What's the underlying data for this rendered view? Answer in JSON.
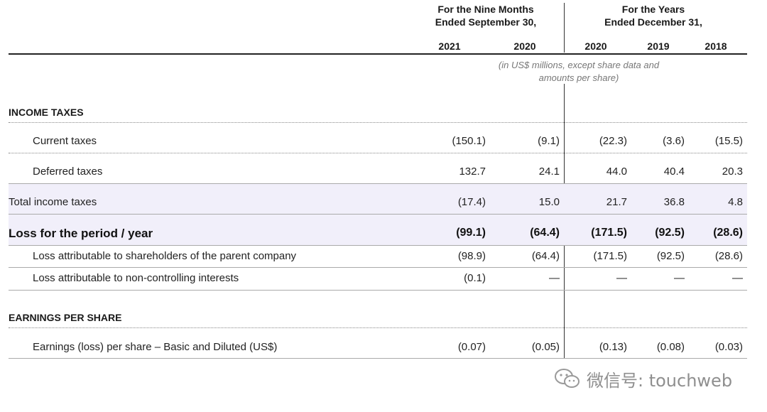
{
  "header": {
    "nine_months_line1": "For the Nine Months",
    "nine_months_line2": "Ended September 30,",
    "years_line1": "For the Years",
    "years_line2": "Ended December 31,",
    "columns": [
      "2021",
      "2020",
      "2020",
      "2019",
      "2018"
    ],
    "unit_note_line1": "(in US$ millions, except share data and",
    "unit_note_line2": "amounts per share)"
  },
  "sections": {
    "income_taxes": "INCOME TAXES",
    "earnings_per_share": "EARNINGS PER SHARE"
  },
  "rows": [
    {
      "label": "Current taxes",
      "values": [
        "(150.1)",
        "(9.1)",
        "(22.3)",
        "(3.6)",
        "(15.5)"
      ]
    },
    {
      "label": "Deferred taxes",
      "values": [
        "132.7",
        "24.1",
        "44.0",
        "40.4",
        "20.3"
      ]
    },
    {
      "label": "Total income taxes",
      "values": [
        "(17.4)",
        "15.0",
        "21.7",
        "36.8",
        "4.8"
      ]
    },
    {
      "label": "Loss for the period / year",
      "values": [
        "(99.1)",
        "(64.4)",
        "(171.5)",
        "(92.5)",
        "(28.6)"
      ]
    },
    {
      "label": "Loss attributable to shareholders of the parent company",
      "values": [
        "(98.9)",
        "(64.4)",
        "(171.5)",
        "(92.5)",
        "(28.6)"
      ]
    },
    {
      "label": "Loss attributable to non-controlling interests",
      "values": [
        "(0.1)",
        "—",
        "—",
        "—",
        "—"
      ]
    },
    {
      "label": "Earnings (loss) per share – Basic and Diluted (US$)",
      "values": [
        "(0.07)",
        "(0.05)",
        "(0.13)",
        "(0.08)",
        "(0.03)"
      ]
    }
  ],
  "watermark": {
    "text": "微信号: touchweb",
    "icon": "wechat-icon"
  }
}
